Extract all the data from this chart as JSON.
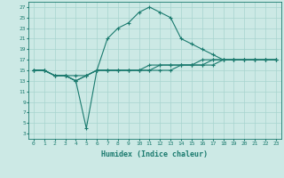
{
  "xlabel": "Humidex (Indice chaleur)",
  "bg_color": "#cce9e5",
  "line_color": "#1a7a6e",
  "grid_color": "#a8d4cf",
  "xlim": [
    -0.5,
    23.5
  ],
  "ylim": [
    2,
    28
  ],
  "xticks": [
    0,
    1,
    2,
    3,
    4,
    5,
    6,
    7,
    8,
    9,
    10,
    11,
    12,
    13,
    14,
    15,
    16,
    17,
    18,
    19,
    20,
    21,
    22,
    23
  ],
  "yticks": [
    3,
    5,
    7,
    9,
    11,
    13,
    15,
    17,
    19,
    21,
    23,
    25,
    27
  ],
  "main_line_x": [
    0,
    1,
    2,
    3,
    4,
    5,
    6,
    7,
    8,
    9,
    10,
    11,
    12,
    13,
    14,
    15,
    16,
    17,
    18,
    19,
    20,
    21,
    22,
    23
  ],
  "main_line_y": [
    15,
    15,
    14,
    14,
    13,
    4,
    15,
    21,
    23,
    24,
    26,
    27,
    26,
    25,
    21,
    20,
    19,
    18,
    17,
    17,
    17,
    17,
    17,
    17
  ],
  "line2_x": [
    0,
    1,
    2,
    3,
    4,
    5,
    6,
    7,
    8,
    9,
    10,
    11,
    12,
    13,
    14,
    15,
    16,
    17,
    18,
    19,
    20,
    21,
    22,
    23
  ],
  "line2_y": [
    15,
    15,
    14,
    14,
    13,
    14,
    15,
    15,
    15,
    15,
    15,
    15,
    15,
    15,
    16,
    16,
    16,
    16,
    17,
    17,
    17,
    17,
    17,
    17
  ],
  "line3_x": [
    0,
    1,
    2,
    3,
    4,
    5,
    6,
    7,
    8,
    9,
    10,
    11,
    12,
    13,
    14,
    15,
    16,
    17,
    18,
    19,
    20,
    21,
    22,
    23
  ],
  "line3_y": [
    15,
    15,
    14,
    14,
    13,
    14,
    15,
    15,
    15,
    15,
    15,
    16,
    16,
    16,
    16,
    16,
    17,
    17,
    17,
    17,
    17,
    17,
    17,
    17
  ],
  "line4_x": [
    0,
    1,
    2,
    3,
    4,
    5,
    6,
    7,
    8,
    9,
    10,
    11,
    12,
    13,
    14,
    15,
    16,
    17,
    18,
    19,
    20,
    21,
    22,
    23
  ],
  "line4_y": [
    15,
    15,
    14,
    14,
    14,
    14,
    15,
    15,
    15,
    15,
    15,
    15,
    16,
    16,
    16,
    16,
    16,
    17,
    17,
    17,
    17,
    17,
    17,
    17
  ]
}
